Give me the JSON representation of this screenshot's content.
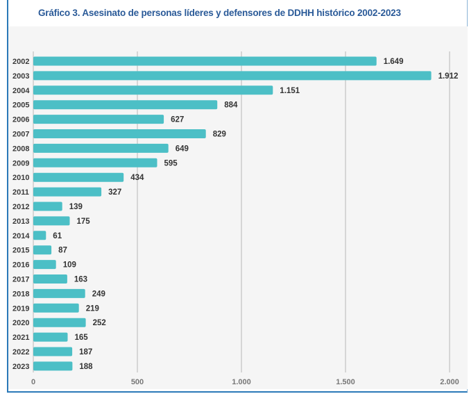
{
  "title": "Gráfico 3. Asesinato de personas líderes y defensores de DDHH histórico 2002-2023",
  "colors": {
    "bar": "#4cbfc6",
    "grid": "#b8b8b8",
    "title": "#2a5a98",
    "frame": "#2a79b8"
  },
  "chart_data": {
    "type": "bar",
    "orientation": "horizontal",
    "title": "Gráfico 3. Asesinato de personas líderes y defensores de DDHH histórico 2002-2023",
    "categories": [
      "2002",
      "2003",
      "2004",
      "2005",
      "2006",
      "2007",
      "2008",
      "2009",
      "2010",
      "2011",
      "2012",
      "2013",
      "2014",
      "2015",
      "2016",
      "2017",
      "2018",
      "2019",
      "2020",
      "2021",
      "2022",
      "2023"
    ],
    "values": [
      1649,
      1912,
      1151,
      884,
      627,
      829,
      649,
      595,
      434,
      327,
      139,
      175,
      61,
      87,
      109,
      163,
      249,
      219,
      252,
      165,
      187,
      188
    ],
    "value_labels": [
      "1.649",
      "1.912",
      "1.151",
      "884",
      "627",
      "829",
      "649",
      "595",
      "434",
      "327",
      "139",
      "175",
      "61",
      "87",
      "109",
      "163",
      "249",
      "219",
      "252",
      "165",
      "187",
      "188"
    ],
    "xlim": [
      0,
      2000
    ],
    "xticks": [
      0,
      500,
      1000,
      1500,
      2000
    ],
    "xtick_labels": [
      "0",
      "500",
      "1.000",
      "1.500",
      "2.000"
    ],
    "grid": true,
    "xlabel": "",
    "ylabel": ""
  }
}
